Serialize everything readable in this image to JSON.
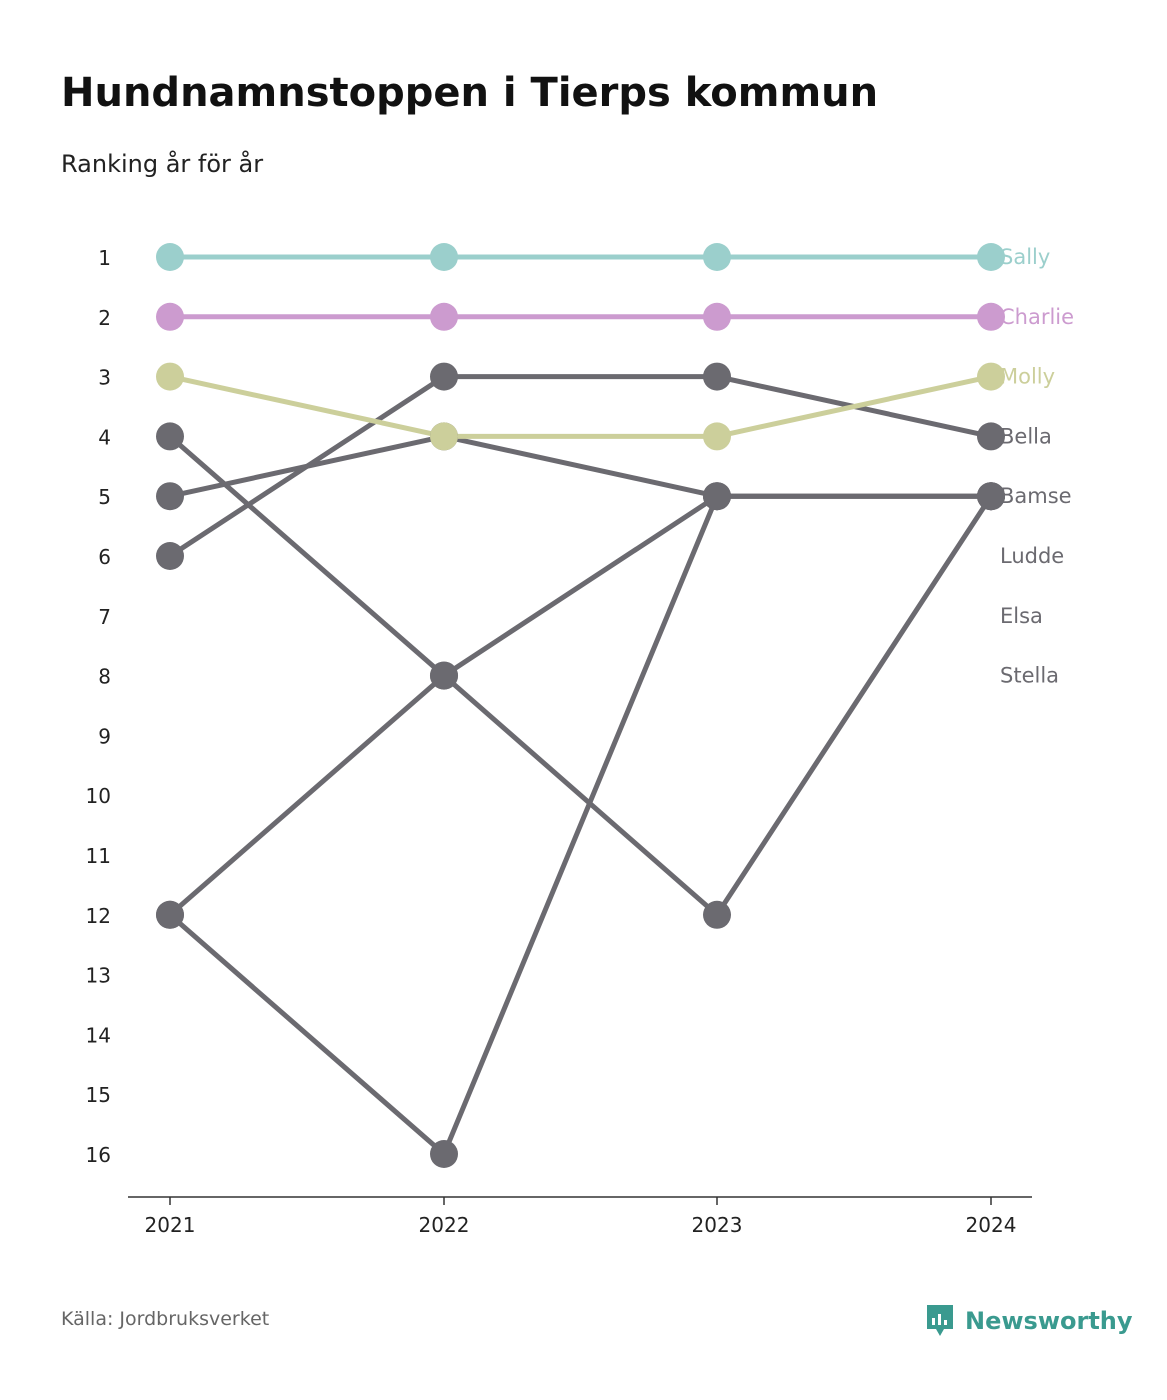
{
  "title": "Hundnamnstoppen i Tierps kommun",
  "subtitle": "Ranking år för år",
  "source": "Källa: Jordbruksverket",
  "brand": {
    "name": "Newsworthy",
    "color": "#3a9a8f",
    "icon": "newsworthy-logo-icon"
  },
  "chart_data": {
    "type": "line",
    "x": [
      "2021",
      "2022",
      "2023",
      "2024"
    ],
    "ylabel": "",
    "xlabel": "",
    "ylim": [
      1,
      16
    ],
    "y_reversed": true,
    "y_ticks": [
      "1",
      "2",
      "3",
      "4",
      "5",
      "6",
      "7",
      "8",
      "9",
      "10",
      "11",
      "12",
      "13",
      "14",
      "15",
      "16"
    ],
    "grid": false,
    "legend": "labels at end of lines (right)",
    "series": [
      {
        "name": "Sally",
        "color": "#9bcfcc",
        "values": [
          1,
          1,
          1,
          1
        ]
      },
      {
        "name": "Charlie",
        "color": "#cc9bcf",
        "values": [
          2,
          2,
          2,
          2
        ]
      },
      {
        "name": "Molly",
        "color": "#cccf9b",
        "values": [
          3,
          4,
          4,
          3
        ]
      },
      {
        "name": "Bella",
        "color": "#6b6a70",
        "values": [
          6,
          3,
          3,
          4
        ]
      },
      {
        "name": "Bamse",
        "color": "#6b6a70",
        "values": [
          12,
          16,
          5,
          5
        ]
      },
      {
        "name": "Ludde",
        "color": "#6b6a70",
        "values": [
          4,
          8,
          12,
          5
        ]
      },
      {
        "name": "Elsa",
        "color": "#6b6a70",
        "values": [
          5,
          4,
          5,
          5
        ]
      },
      {
        "name": "Stella",
        "color": "#6b6a70",
        "values": [
          12,
          8,
          5,
          5
        ]
      }
    ]
  }
}
